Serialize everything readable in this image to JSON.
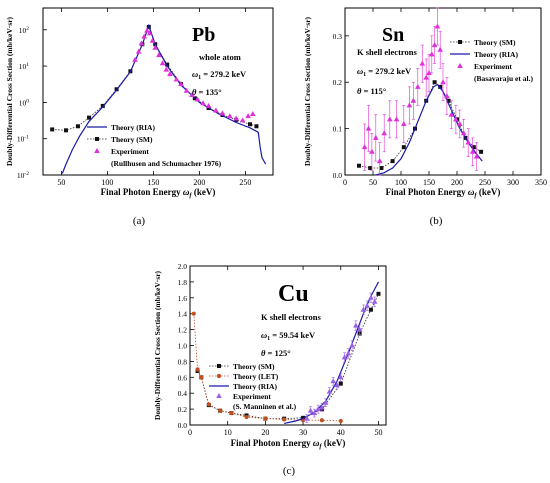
{
  "chart_data": [
    {
      "type": "scatter",
      "panel_label": "(a)",
      "element": "Pb",
      "subtitle": "whole atom",
      "omega_label": "ω",
      "omega_sub": "1",
      "omega_value": "= 279.2 keV",
      "theta_label": "θ",
      "theta_value": "= 135°",
      "xlabel": "Final Photon Energy ",
      "xlabel_italic": "ω",
      "xlabel_sub": "f",
      "xlabel_unit": " (keV)",
      "ylabel": "Doubly-Differential Cross Section (mb/keV·sr)",
      "yscale": "log",
      "xlim": [
        30,
        280
      ],
      "ylim_exp": [
        -2,
        2.6
      ],
      "xticks": [
        50,
        100,
        150,
        200,
        250
      ],
      "yticks_exp": [
        -2,
        -1,
        0,
        1,
        2
      ],
      "ytick_labels": [
        "10",
        "10",
        "10",
        "10",
        "10"
      ],
      "ytick_sup": [
        "-2",
        "-1",
        "0",
        "1",
        "2"
      ],
      "legend": [
        "Theory (RIA)",
        "Theory (SM)",
        "Experiment",
        "(Rullhusen and Schumacher 1976)"
      ],
      "series": [
        {
          "name": "Theory (SM)",
          "style": "dotted-square",
          "color": "#222222",
          "x": [
            40,
            55,
            68,
            80,
            95,
            110,
            125,
            138,
            145,
            152,
            165,
            180,
            195,
            210,
            225,
            240,
            255,
            262
          ],
          "y": [
            0.18,
            0.17,
            0.22,
            0.38,
            0.8,
            2.3,
            7.2,
            40,
            120,
            40,
            11,
            3.2,
            1.3,
            0.7,
            0.45,
            0.33,
            0.25,
            0.22
          ]
        },
        {
          "name": "Theory (RIA)",
          "style": "line",
          "color": "#1a1aa8",
          "x": [
            51,
            55,
            62,
            70,
            80,
            95,
            110,
            125,
            138,
            145,
            152,
            165,
            180,
            200,
            220,
            240,
            255,
            264,
            266,
            268,
            272
          ],
          "y": [
            0.011,
            0.02,
            0.05,
            0.12,
            0.3,
            0.75,
            2.2,
            7,
            40,
            130,
            40,
            10,
            3,
            1,
            0.5,
            0.28,
            0.2,
            0.15,
            0.06,
            0.03,
            0.02
          ]
        },
        {
          "name": "Experiment",
          "style": "triangle",
          "color": "#e030d8",
          "x": [
            130,
            134,
            137,
            140,
            143,
            146,
            149,
            152,
            156,
            160,
            164,
            168,
            175,
            180,
            186,
            192,
            198,
            204,
            210,
            218,
            225,
            233,
            240,
            247,
            253,
            258
          ],
          "y": [
            15,
            25,
            42,
            65,
            95,
            80,
            50,
            32,
            20,
            12,
            8,
            6,
            4.3,
            3.2,
            2.1,
            1.6,
            1.2,
            0.95,
            0.8,
            0.6,
            0.5,
            0.42,
            0.36,
            0.32,
            0.42,
            0.48
          ]
        }
      ]
    },
    {
      "type": "scatter",
      "panel_label": "(b)",
      "element": "Sn",
      "subtitle": "K shell electrons",
      "omega_label": "ω",
      "omega_sub": "1",
      "omega_value": "= 279.2 keV",
      "theta_label": "θ",
      "theta_value": "= 115°",
      "xlabel": "Final Photon Energy ",
      "xlabel_italic": "ω",
      "xlabel_sub": "f",
      "xlabel_unit": " (keV)",
      "ylabel": "Doubly-Differential Cross Section (mb/keV·sr)",
      "xlim": [
        0,
        350
      ],
      "ylim": [
        0,
        0.36
      ],
      "xticks": [
        0,
        50,
        100,
        150,
        200,
        250,
        300,
        350
      ],
      "yticks": [
        0.0,
        0.1,
        0.2,
        0.3
      ],
      "ytick_labels": [
        "0.0",
        "0.1",
        "0.2",
        "0.3"
      ],
      "legend": [
        "Theory (SM)",
        "Theory (RIA)",
        "Experiment",
        "(Basavaraju et al.)"
      ],
      "series": [
        {
          "name": "Theory (SM)",
          "style": "dotted-square",
          "color": "#222222",
          "x": [
            25,
            45,
            65,
            85,
            105,
            125,
            145,
            160,
            170,
            185,
            200,
            215,
            230,
            243
          ],
          "y": [
            0.02,
            0.015,
            0.015,
            0.03,
            0.06,
            0.1,
            0.16,
            0.2,
            0.19,
            0.16,
            0.12,
            0.08,
            0.06,
            0.05
          ]
        },
        {
          "name": "Theory (RIA)",
          "style": "line",
          "color": "#1a1aa8",
          "x": [
            55,
            70,
            85,
            100,
            115,
            130,
            145,
            158,
            165,
            175,
            190,
            205,
            220,
            235,
            245
          ],
          "y": [
            0.0,
            0.005,
            0.015,
            0.035,
            0.07,
            0.115,
            0.16,
            0.19,
            0.195,
            0.18,
            0.14,
            0.1,
            0.07,
            0.045,
            0.03
          ]
        },
        {
          "name": "Experiment",
          "style": "triangle-err",
          "color": "#e030d8",
          "x": [
            35,
            42,
            48,
            55,
            62,
            70,
            80,
            92,
            105,
            115,
            122,
            130,
            138,
            145,
            150,
            155,
            160,
            165,
            170,
            175,
            182,
            190,
            198,
            205,
            212,
            220,
            228,
            235
          ],
          "y": [
            0.06,
            0.1,
            0.05,
            0.08,
            0.03,
            0.09,
            0.12,
            0.12,
            0.11,
            0.15,
            0.16,
            0.19,
            0.24,
            0.21,
            0.22,
            0.26,
            0.28,
            0.32,
            0.27,
            0.2,
            0.17,
            0.13,
            0.12,
            0.11,
            0.09,
            0.07,
            0.05,
            0.04
          ],
          "err": [
            0.05,
            0.05,
            0.04,
            0.05,
            0.04,
            0.04,
            0.04,
            0.04,
            0.04,
            0.04,
            0.04,
            0.04,
            0.04,
            0.04,
            0.04,
            0.04,
            0.04,
            0.04,
            0.04,
            0.04,
            0.04,
            0.03,
            0.03,
            0.03,
            0.03,
            0.03,
            0.03,
            0.03
          ]
        }
      ]
    },
    {
      "type": "scatter",
      "panel_label": "(c)",
      "element": "Cu",
      "subtitle": "K shell electrons",
      "omega_label": "ω",
      "omega_sub": "1",
      "omega_value": "= 59.54 keV",
      "theta_label": "θ",
      "theta_value": "= 125°",
      "xlabel": "Final Photon Energy ",
      "xlabel_italic": "ω",
      "xlabel_sub": "f",
      "xlabel_unit": " (keV)",
      "ylabel": "Doubly-Differential Cross Section (mb/keV·sr)",
      "xlim": [
        0,
        52
      ],
      "ylim": [
        0,
        2.0
      ],
      "xticks": [
        0,
        10,
        20,
        30,
        40,
        50
      ],
      "yticks": [
        0.0,
        0.2,
        0.4,
        0.6,
        0.8,
        1.0,
        1.2,
        1.4,
        1.6,
        1.8,
        2.0
      ],
      "ytick_labels": [
        "0.0",
        "0.2",
        "0.4",
        "0.6",
        "0.8",
        "1.0",
        "1.2",
        "1.4",
        "1.6",
        "1.8",
        "2.0"
      ],
      "legend": [
        "Theory (SM)",
        "Theory (LET)",
        "Theory (RIA)",
        "Experiment",
        "(S. Manninen et al.)"
      ],
      "series": [
        {
          "name": "Theory (SM)",
          "style": "dotted-square",
          "color": "#222222",
          "x": [
            2,
            3,
            5,
            8,
            11,
            15,
            20,
            25,
            30,
            35,
            40,
            45,
            48,
            50
          ],
          "y": [
            0.68,
            0.6,
            0.25,
            0.18,
            0.15,
            0.12,
            0.08,
            0.08,
            0.09,
            0.2,
            0.52,
            1.15,
            1.45,
            1.65
          ]
        },
        {
          "name": "Theory (LET)",
          "style": "dotted-circle",
          "color": "#c05020",
          "x": [
            1,
            2,
            3,
            5,
            8,
            11,
            15,
            20,
            25,
            30,
            35,
            40
          ],
          "y": [
            1.4,
            0.7,
            0.6,
            0.26,
            0.18,
            0.15,
            0.1,
            0.08,
            0.07,
            0.06,
            0.06,
            0.05
          ]
        },
        {
          "name": "Theory (RIA)",
          "style": "line",
          "color": "#1a1aa8",
          "x": [
            25,
            28,
            30,
            33,
            36,
            39,
            42,
            44,
            46,
            48,
            50
          ],
          "y": [
            0.02,
            0.05,
            0.08,
            0.16,
            0.3,
            0.55,
            0.9,
            1.15,
            1.4,
            1.62,
            1.8
          ]
        },
        {
          "name": "Experiment",
          "style": "triangle-err",
          "color": "#9a60e8",
          "x": [
            31,
            32,
            33,
            34,
            35,
            36,
            37,
            38,
            39,
            40,
            41,
            42,
            43,
            44,
            45,
            46,
            47,
            48,
            49
          ],
          "y": [
            0.08,
            0.18,
            0.15,
            0.2,
            0.22,
            0.28,
            0.42,
            0.55,
            0.5,
            0.6,
            0.85,
            0.9,
            1.0,
            1.25,
            1.2,
            1.45,
            1.5,
            1.6,
            1.55
          ],
          "err": [
            0.05,
            0.05,
            0.05,
            0.05,
            0.05,
            0.05,
            0.05,
            0.05,
            0.05,
            0.05,
            0.06,
            0.06,
            0.06,
            0.06,
            0.06,
            0.06,
            0.06,
            0.06,
            0.06
          ]
        }
      ]
    }
  ]
}
